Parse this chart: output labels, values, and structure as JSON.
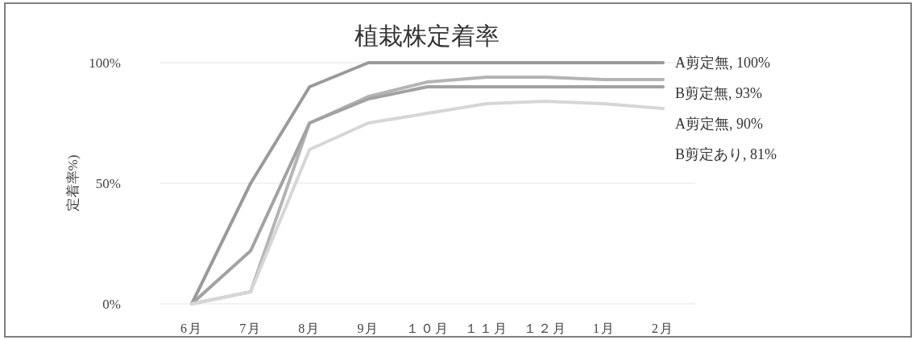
{
  "chart_data": {
    "type": "line",
    "title": "植栽株定着率",
    "ylabel": "定着率%)",
    "categories": [
      "6月",
      "7月",
      "8月",
      "9月",
      "１０月",
      "１１月",
      "１２月",
      "1月",
      "2月"
    ],
    "ylim": [
      0,
      100
    ],
    "yticks": [
      {
        "value": 0,
        "label": "0%"
      },
      {
        "value": 50,
        "label": "50%"
      },
      {
        "value": 100,
        "label": "100%"
      }
    ],
    "grid": "y",
    "marker": "none",
    "line_style": "solid",
    "series": [
      {
        "name": "A剪定無, 100%",
        "color": "#9a9a9a",
        "values": [
          0,
          50,
          90,
          100,
          100,
          100,
          100,
          100,
          100
        ]
      },
      {
        "name": "B剪定無, 93%",
        "color": "#b4b4b4",
        "values": [
          0,
          5,
          75,
          86,
          92,
          94,
          94,
          93,
          93
        ]
      },
      {
        "name": "A剪定無, 90%",
        "color": "#a2a2a2",
        "values": [
          0,
          22,
          75,
          85,
          90,
          90,
          90,
          90,
          90
        ]
      },
      {
        "name": "B剪定あり, 81%",
        "color": "#d6d6d6",
        "values": [
          0,
          5,
          64,
          75,
          79,
          83,
          84,
          83,
          81
        ]
      }
    ]
  }
}
